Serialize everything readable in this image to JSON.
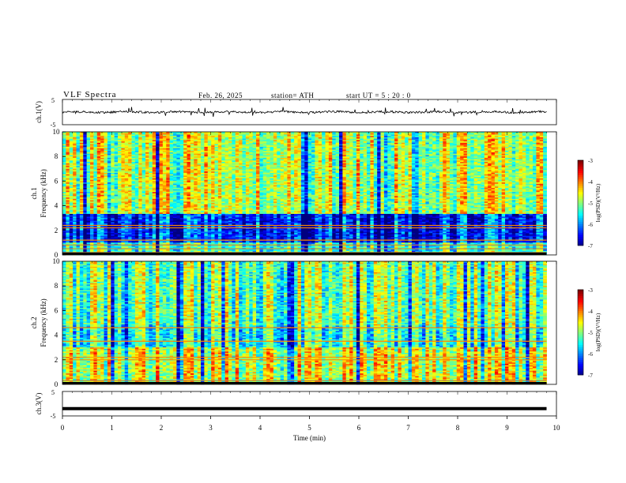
{
  "header": {
    "title": "VLF  Spectra",
    "date": "Feb. 26, 2025",
    "station": "station= ATH",
    "start_ut": "start  UT  =   5  : 20 : 0"
  },
  "chart_data": [
    {
      "type": "line",
      "name": "ch.1 waveform",
      "ylabel": "ch.1(V)",
      "ylim": [
        -5,
        5
      ],
      "yticks": [
        "5",
        "-5"
      ],
      "xlim": [
        0,
        10
      ],
      "x_end": 9.8,
      "baseline": 0.0,
      "noise_amplitude": 0.4
    },
    {
      "type": "heatmap",
      "name": "ch.1 spectrogram",
      "ylabel_channel": "ch.1",
      "ylabel": "Frequency  (kHz)",
      "ylim": [
        0,
        10
      ],
      "yticks": [
        "0",
        "2",
        "4",
        "6",
        "8",
        "10"
      ],
      "xlim": [
        0,
        10
      ],
      "x_end": 9.8,
      "colorbar": {
        "label": "log(PSD)(V²/Hz)",
        "ticks": [
          "-3",
          "-4",
          "-5",
          "-6",
          "-7"
        ],
        "range": [
          -7,
          -3
        ]
      },
      "lines_khz": [
        0.2,
        0.5,
        0.8,
        1.2,
        2.2,
        2.4
      ],
      "blue_band_khz": [
        1.0,
        3.3
      ]
    },
    {
      "type": "heatmap",
      "name": "ch.2 spectrogram",
      "ylabel_channel": "ch.2",
      "ylabel": "Frequency  (kHz)",
      "ylim": [
        0,
        10
      ],
      "yticks": [
        "0",
        "2",
        "4",
        "6",
        "8",
        "10"
      ],
      "xlim": [
        0,
        10
      ],
      "x_end": 9.8,
      "colorbar": {
        "label": "log(PSD)(V²/Hz)",
        "ticks": [
          "-3",
          "-4",
          "-5",
          "-6",
          "-7"
        ],
        "range": [
          -7,
          -3
        ]
      },
      "lines_khz": [
        0.3,
        2.0,
        2.2,
        3.5,
        4.6
      ]
    },
    {
      "type": "line",
      "name": "ch.3 waveform",
      "ylabel": "ch.3(V)",
      "ylim": [
        -5,
        5
      ],
      "yticks": [
        "5",
        "-5"
      ],
      "xlim": [
        0,
        10
      ],
      "x_end": 9.8,
      "baseline": -2.0,
      "xlabel": "Time  (min)",
      "xticks": [
        "0",
        "1",
        "2",
        "3",
        "4",
        "5",
        "6",
        "7",
        "8",
        "9",
        "10"
      ]
    }
  ]
}
